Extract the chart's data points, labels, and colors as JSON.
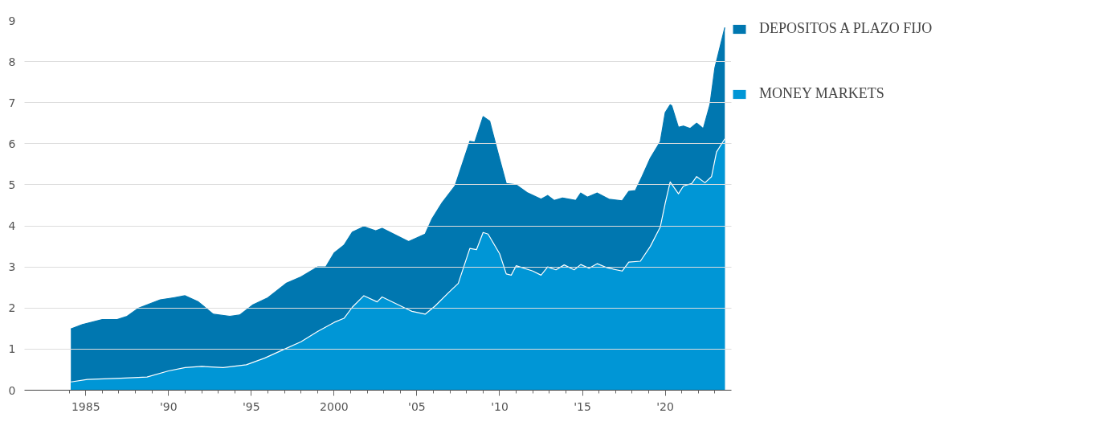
{
  "chart_data": {
    "type": "area",
    "xlim": [
      1981.3,
      2024
    ],
    "ylim": [
      0,
      9
    ],
    "xticks": [
      {
        "value": 1984,
        "label": null
      },
      {
        "value": 1985,
        "label": "1985"
      },
      {
        "value": 1986,
        "label": null
      },
      {
        "value": 1987,
        "label": null
      },
      {
        "value": 1988,
        "label": null
      },
      {
        "value": 1989,
        "label": null
      },
      {
        "value": 1990,
        "label": "'90"
      },
      {
        "value": 1991,
        "label": null
      },
      {
        "value": 1992,
        "label": null
      },
      {
        "value": 1993,
        "label": null
      },
      {
        "value": 1994,
        "label": null
      },
      {
        "value": 1995,
        "label": "'95"
      },
      {
        "value": 1996,
        "label": null
      },
      {
        "value": 1997,
        "label": null
      },
      {
        "value": 1998,
        "label": null
      },
      {
        "value": 1999,
        "label": null
      },
      {
        "value": 2000,
        "label": "2000"
      },
      {
        "value": 2001,
        "label": null
      },
      {
        "value": 2002,
        "label": null
      },
      {
        "value": 2003,
        "label": null
      },
      {
        "value": 2004,
        "label": null
      },
      {
        "value": 2005,
        "label": "'05"
      },
      {
        "value": 2006,
        "label": null
      },
      {
        "value": 2007,
        "label": null
      },
      {
        "value": 2008,
        "label": null
      },
      {
        "value": 2009,
        "label": null
      },
      {
        "value": 2010,
        "label": "'10"
      },
      {
        "value": 2011,
        "label": null
      },
      {
        "value": 2012,
        "label": null
      },
      {
        "value": 2013,
        "label": null
      },
      {
        "value": 2014,
        "label": null
      },
      {
        "value": 2015,
        "label": "'15"
      },
      {
        "value": 2016,
        "label": null
      },
      {
        "value": 2017,
        "label": null
      },
      {
        "value": 2018,
        "label": null
      },
      {
        "value": 2019,
        "label": null
      },
      {
        "value": 2020,
        "label": "'20"
      },
      {
        "value": 2021,
        "label": null
      },
      {
        "value": 2022,
        "label": null
      },
      {
        "value": 2023,
        "label": null
      }
    ],
    "yticks": [
      0,
      1,
      2,
      3,
      4,
      5,
      6,
      7,
      8,
      9
    ],
    "grid": "y",
    "legend": "right",
    "series": [
      {
        "name": "DEPOSITOS A PLAZO FIJO",
        "color": "#0077b0",
        "x": [
          1984.1,
          1984.8,
          1986.0,
          1986.9,
          1987.5,
          1988.2,
          1989.5,
          1990.3,
          1991.0,
          1991.8,
          1992.7,
          1993.7,
          1994.3,
          1995.1,
          1996.0,
          1997.1,
          1998.0,
          1999.0,
          1999.5,
          2000.0,
          2000.6,
          2001.1,
          2001.8,
          2002.5,
          2002.9,
          2004.5,
          2005.5,
          2005.9,
          2006.5,
          2007.3,
          2008.2,
          2008.5,
          2009.0,
          2009.4,
          2009.9,
          2010.4,
          2011.0,
          2011.7,
          2012.5,
          2012.9,
          2013.3,
          2013.8,
          2014.6,
          2014.9,
          2015.3,
          2015.9,
          2016.6,
          2017.4,
          2017.8,
          2018.2,
          2018.6,
          2019.1,
          2019.7,
          2020.0,
          2020.3,
          2020.4,
          2020.8,
          2021.1,
          2021.5,
          2021.9,
          2022.3,
          2022.7,
          2023.0,
          2023.6
        ],
        "values": [
          1.49,
          1.6,
          1.72,
          1.72,
          1.8,
          2.0,
          2.2,
          2.25,
          2.3,
          2.15,
          1.85,
          1.8,
          1.83,
          2.08,
          2.25,
          2.6,
          2.76,
          3.0,
          3.0,
          3.34,
          3.53,
          3.85,
          3.98,
          3.88,
          3.94,
          3.62,
          3.8,
          4.16,
          4.55,
          4.97,
          6.06,
          6.04,
          6.66,
          6.55,
          5.78,
          5.03,
          5.0,
          4.8,
          4.65,
          4.74,
          4.62,
          4.68,
          4.62,
          4.8,
          4.7,
          4.8,
          4.65,
          4.61,
          4.84,
          4.86,
          5.2,
          5.65,
          6.05,
          6.76,
          6.95,
          6.92,
          6.4,
          6.43,
          6.37,
          6.5,
          6.37,
          6.95,
          7.85,
          8.83
        ]
      },
      {
        "name": "MONEY MARKETS",
        "color": "#0096d6",
        "x": [
          1984.1,
          1985.1,
          1987.1,
          1988.7,
          1990.0,
          1991.0,
          1992.0,
          1993.3,
          1994.7,
          1995.8,
          1996.9,
          1998.0,
          1999.0,
          2000.0,
          2000.6,
          2001.1,
          2001.8,
          2002.6,
          2002.9,
          2004.7,
          2005.5,
          2006.1,
          2006.9,
          2007.5,
          2008.2,
          2008.6,
          2009.0,
          2009.3,
          2010.0,
          2010.4,
          2010.7,
          2011.0,
          2012.0,
          2012.5,
          2012.9,
          2013.4,
          2013.9,
          2014.5,
          2014.9,
          2015.4,
          2015.9,
          2016.5,
          2017.4,
          2017.8,
          2018.5,
          2019.1,
          2019.7,
          2020.0,
          2020.3,
          2020.8,
          2021.1,
          2021.6,
          2021.9,
          2022.4,
          2022.8,
          2023.1,
          2023.6
        ],
        "values": [
          0.2,
          0.26,
          0.29,
          0.32,
          0.47,
          0.55,
          0.58,
          0.55,
          0.62,
          0.78,
          0.98,
          1.18,
          1.43,
          1.65,
          1.75,
          2.02,
          2.3,
          2.15,
          2.27,
          1.92,
          1.85,
          2.05,
          2.37,
          2.6,
          3.45,
          3.42,
          3.84,
          3.8,
          3.32,
          2.83,
          2.8,
          3.03,
          2.9,
          2.8,
          3.0,
          2.93,
          3.05,
          2.93,
          3.06,
          2.97,
          3.08,
          2.98,
          2.9,
          3.12,
          3.14,
          3.5,
          3.97,
          4.55,
          5.07,
          4.78,
          4.97,
          5.03,
          5.2,
          5.05,
          5.2,
          5.8,
          6.12
        ]
      }
    ]
  }
}
